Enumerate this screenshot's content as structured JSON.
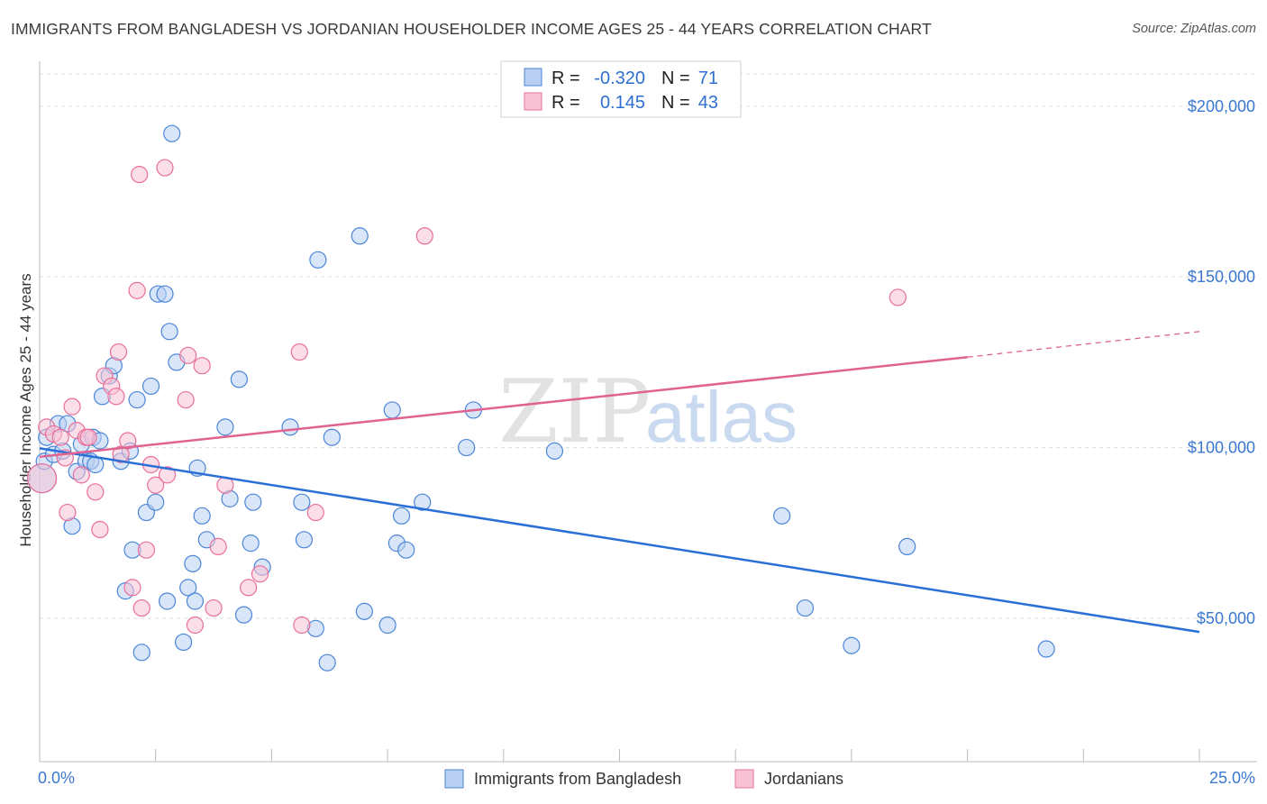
{
  "title": "IMMIGRANTS FROM BANGLADESH VS JORDANIAN HOUSEHOLDER INCOME AGES 25 - 44 YEARS CORRELATION CHART",
  "source": "Source: ZipAtlas.com",
  "watermark": {
    "zip": "ZIP",
    "atlas": "atlas"
  },
  "colors": {
    "blue": "#4a86d8",
    "blue_fill": "#b9d0f2",
    "blue_line": "#2a6fd6",
    "pink": "#e96f9a",
    "pink_fill": "#f7c3d5",
    "pink_line": "#e0628f",
    "grid": "#dddddd",
    "tick_text": "#3b78d0"
  },
  "legend_top": {
    "rows": [
      {
        "r_label": "R =",
        "r_value": "-0.320",
        "n_label": "N =",
        "n_value": "71",
        "color": "blue"
      },
      {
        "r_label": "R =",
        "r_value": "0.145",
        "n_label": "N =",
        "n_value": "43",
        "color": "pink"
      }
    ]
  },
  "legend_bottom": {
    "items": [
      {
        "label": "Immigrants from Bangladesh",
        "color": "blue"
      },
      {
        "label": "Jordanians",
        "color": "pink"
      }
    ]
  },
  "chart_data": {
    "type": "scatter",
    "title": "IMMIGRANTS FROM BANGLADESH VS JORDANIAN HOUSEHOLDER INCOME AGES 25 - 44 YEARS CORRELATION CHART",
    "xlabel": "",
    "ylabel": "Householder Income Ages 25 - 44 years",
    "xlim": [
      0,
      25
    ],
    "ylim": [
      8000,
      210000
    ],
    "x_tick_labels": [
      "0.0%",
      "25.0%"
    ],
    "y_ticks": [
      50000,
      100000,
      150000,
      200000
    ],
    "y_tick_labels": [
      "$50,000",
      "$100,000",
      "$150,000",
      "$200,000"
    ],
    "grid": "horizontal dashed",
    "legend_placement": "top-center",
    "series": [
      {
        "name": "Immigrants from Bangladesh",
        "color": "blue",
        "points": [
          [
            0.05,
            91000
          ],
          [
            0.1,
            96000
          ],
          [
            0.15,
            103000
          ],
          [
            0.3,
            98000
          ],
          [
            0.4,
            107000
          ],
          [
            0.5,
            99000
          ],
          [
            0.6,
            107000
          ],
          [
            0.7,
            77000
          ],
          [
            0.8,
            93000
          ],
          [
            0.9,
            101000
          ],
          [
            1.0,
            96000
          ],
          [
            1.1,
            96000
          ],
          [
            1.15,
            103000
          ],
          [
            1.2,
            95000
          ],
          [
            1.3,
            102000
          ],
          [
            1.35,
            115000
          ],
          [
            1.5,
            121000
          ],
          [
            1.6,
            124000
          ],
          [
            1.75,
            96000
          ],
          [
            1.85,
            58000
          ],
          [
            1.95,
            99000
          ],
          [
            2.0,
            70000
          ],
          [
            2.1,
            114000
          ],
          [
            2.2,
            40000
          ],
          [
            2.3,
            81000
          ],
          [
            2.4,
            118000
          ],
          [
            2.5,
            84000
          ],
          [
            2.55,
            145000
          ],
          [
            2.7,
            145000
          ],
          [
            2.75,
            55000
          ],
          [
            2.8,
            134000
          ],
          [
            2.85,
            192000
          ],
          [
            2.95,
            125000
          ],
          [
            3.1,
            43000
          ],
          [
            3.2,
            59000
          ],
          [
            3.3,
            66000
          ],
          [
            3.35,
            55000
          ],
          [
            3.4,
            94000
          ],
          [
            3.5,
            80000
          ],
          [
            3.6,
            73000
          ],
          [
            4.0,
            106000
          ],
          [
            4.1,
            85000
          ],
          [
            4.3,
            120000
          ],
          [
            4.4,
            51000
          ],
          [
            4.55,
            72000
          ],
          [
            4.6,
            84000
          ],
          [
            4.8,
            65000
          ],
          [
            5.4,
            106000
          ],
          [
            5.65,
            84000
          ],
          [
            5.7,
            73000
          ],
          [
            5.95,
            47000
          ],
          [
            6.0,
            155000
          ],
          [
            6.2,
            37000
          ],
          [
            6.3,
            103000
          ],
          [
            6.9,
            162000
          ],
          [
            7.0,
            52000
          ],
          [
            7.5,
            48000
          ],
          [
            7.6,
            111000
          ],
          [
            7.7,
            72000
          ],
          [
            7.8,
            80000
          ],
          [
            7.9,
            70000
          ],
          [
            8.25,
            84000
          ],
          [
            9.2,
            100000
          ],
          [
            9.35,
            111000
          ],
          [
            11.1,
            99000
          ],
          [
            16.0,
            80000
          ],
          [
            16.5,
            53000
          ],
          [
            17.5,
            42000
          ],
          [
            18.7,
            71000
          ],
          [
            21.7,
            41000
          ]
        ],
        "trend": {
          "x0": 0,
          "y0": 99800,
          "x1": 25,
          "y1": 46000
        }
      },
      {
        "name": "Jordanians",
        "color": "pink",
        "points": [
          [
            0.05,
            91000
          ],
          [
            0.15,
            106000
          ],
          [
            0.3,
            104000
          ],
          [
            0.45,
            103000
          ],
          [
            0.55,
            97000
          ],
          [
            0.6,
            81000
          ],
          [
            0.7,
            112000
          ],
          [
            0.8,
            105000
          ],
          [
            0.9,
            92000
          ],
          [
            1.0,
            103000
          ],
          [
            1.05,
            103000
          ],
          [
            1.2,
            87000
          ],
          [
            1.3,
            76000
          ],
          [
            1.4,
            121000
          ],
          [
            1.55,
            118000
          ],
          [
            1.65,
            115000
          ],
          [
            1.7,
            128000
          ],
          [
            1.75,
            98000
          ],
          [
            1.9,
            102000
          ],
          [
            2.0,
            59000
          ],
          [
            2.1,
            146000
          ],
          [
            2.15,
            180000
          ],
          [
            2.2,
            53000
          ],
          [
            2.3,
            70000
          ],
          [
            2.4,
            95000
          ],
          [
            2.5,
            89000
          ],
          [
            2.7,
            182000
          ],
          [
            2.75,
            92000
          ],
          [
            3.15,
            114000
          ],
          [
            3.2,
            127000
          ],
          [
            3.35,
            48000
          ],
          [
            3.5,
            124000
          ],
          [
            3.75,
            53000
          ],
          [
            3.85,
            71000
          ],
          [
            4.0,
            89000
          ],
          [
            4.5,
            59000
          ],
          [
            4.75,
            63000
          ],
          [
            5.6,
            128000
          ],
          [
            5.65,
            48000
          ],
          [
            5.95,
            81000
          ],
          [
            8.3,
            162000
          ],
          [
            18.5,
            144000
          ]
        ],
        "trend": {
          "x0": 0,
          "y0": 97300,
          "x1": 20,
          "y1": 126500
        },
        "trend_dashed_extension": {
          "x0": 20,
          "y0": 126500,
          "x1": 25,
          "y1": 134000
        }
      }
    ]
  }
}
